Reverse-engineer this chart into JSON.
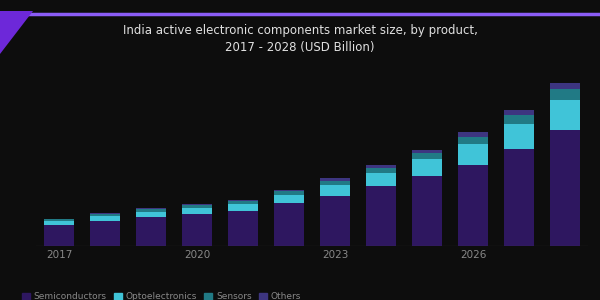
{
  "title": "India active electronic components market size, by product,\n2017 - 2028 (USD Billion)",
  "years": [
    2017,
    2018,
    2019,
    2020,
    2021,
    2022,
    2023,
    2024,
    2025,
    2026,
    2027,
    2028
  ],
  "segment1": [
    0.55,
    0.65,
    0.75,
    0.82,
    0.9,
    1.1,
    1.3,
    1.55,
    1.8,
    2.1,
    2.5,
    3.0
  ],
  "segment2": [
    0.1,
    0.12,
    0.14,
    0.16,
    0.18,
    0.22,
    0.28,
    0.35,
    0.44,
    0.54,
    0.65,
    0.78
  ],
  "segment3": [
    0.04,
    0.05,
    0.06,
    0.07,
    0.08,
    0.09,
    0.11,
    0.13,
    0.16,
    0.19,
    0.23,
    0.27
  ],
  "segment4": [
    0.02,
    0.03,
    0.03,
    0.04,
    0.04,
    0.05,
    0.06,
    0.07,
    0.09,
    0.11,
    0.13,
    0.16
  ],
  "color1": "#2e1760",
  "color2": "#40c4d8",
  "color3": "#217a85",
  "color4": "#3d3580",
  "bg_color": "#0d0d0d",
  "plot_bg": "#0d0d0d",
  "title_color": "#e0e0e0",
  "bar_width": 0.65,
  "legend_labels": [
    "Semiconductors",
    "Optoelectronics",
    "Sensors",
    "Others"
  ],
  "legend_colors": [
    "#2e1760",
    "#40c4d8",
    "#217a85",
    "#3d3580"
  ],
  "title_fontsize": 8.5,
  "tick_color": "#888888",
  "tick_label_years": [
    2017,
    2020,
    2023,
    2026
  ],
  "accent_line_color": "#8b5cf6",
  "triangle_color": "#6d28d9",
  "ylim": [
    0,
    4.5
  ]
}
